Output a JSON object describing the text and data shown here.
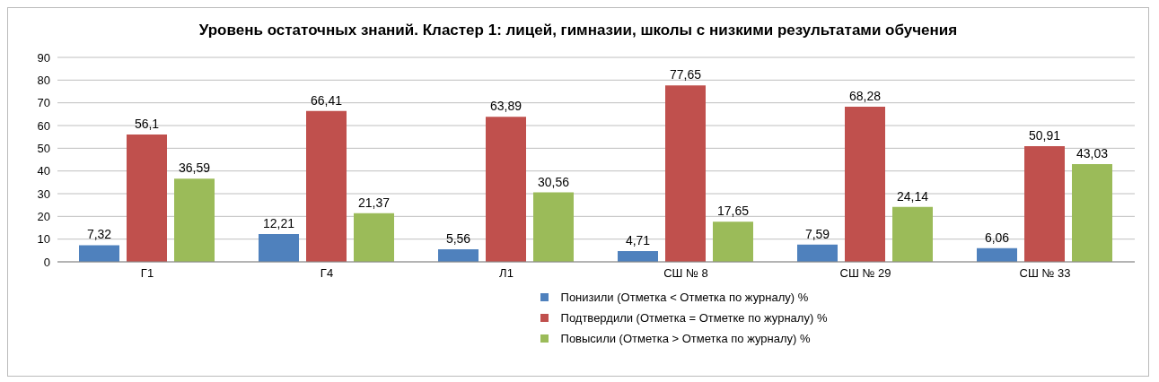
{
  "chart_data": {
    "type": "bar",
    "title": "Уровень остаточных знаний. Кластер 1: лицей, гимназии, школы с низкими результатами обучения",
    "categories": [
      "Г1",
      "Г4",
      "Л1",
      "СШ № 8",
      "СШ № 29",
      "СШ № 33"
    ],
    "series": [
      {
        "name": "Понизили (Отметка < Отметка по журналу) %",
        "color": "#4f81bd",
        "values": [
          7.32,
          12.21,
          5.56,
          4.71,
          7.59,
          6.06
        ],
        "value_labels": [
          "7,32",
          "12,21",
          "5,56",
          "4,71",
          "7,59",
          "6,06"
        ]
      },
      {
        "name": "Подтвердили (Отметка = Отметке по журналу) %",
        "color": "#c0504d",
        "values": [
          56.1,
          66.41,
          63.89,
          77.65,
          68.28,
          50.91
        ],
        "value_labels": [
          "56,1",
          "66,41",
          "63,89",
          "77,65",
          "68,28",
          "50,91"
        ]
      },
      {
        "name": "Повысили (Отметка > Отметка по журналу) %",
        "color": "#9bbb59",
        "values": [
          36.59,
          21.37,
          30.56,
          17.65,
          24.14,
          43.03
        ],
        "value_labels": [
          "36,59",
          "21,37",
          "30,56",
          "17,65",
          "24,14",
          "43,03"
        ]
      }
    ],
    "ylim": [
      0,
      90
    ],
    "yticks": [
      0,
      10,
      20,
      30,
      40,
      50,
      60,
      70,
      80,
      90
    ],
    "grid": "y",
    "legend": "bottom"
  }
}
